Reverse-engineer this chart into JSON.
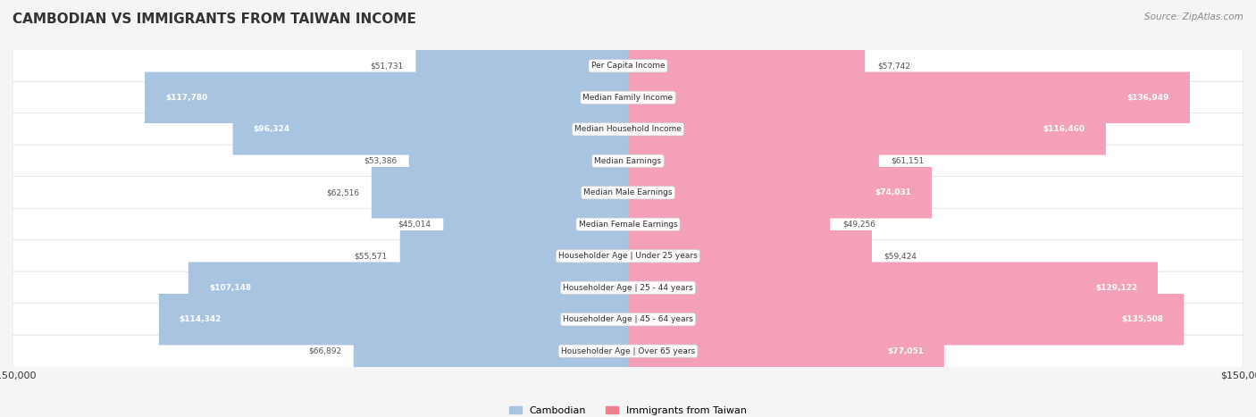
{
  "title": "CAMBODIAN VS IMMIGRANTS FROM TAIWAN INCOME",
  "source": "Source: ZipAtlas.com",
  "categories": [
    "Per Capita Income",
    "Median Family Income",
    "Median Household Income",
    "Median Earnings",
    "Median Male Earnings",
    "Median Female Earnings",
    "Householder Age | Under 25 years",
    "Householder Age | 25 - 44 years",
    "Householder Age | 45 - 64 years",
    "Householder Age | Over 65 years"
  ],
  "cambodian_values": [
    51731,
    117780,
    96324,
    53386,
    62516,
    45014,
    55571,
    107148,
    114342,
    66892
  ],
  "taiwan_values": [
    57742,
    136949,
    116460,
    61151,
    74031,
    49256,
    59424,
    129122,
    135508,
    77051
  ],
  "max_value": 150000,
  "cambodian_color": "#a8c4e0",
  "cambodian_dark_color": "#6699cc",
  "taiwan_color": "#f4a0b8",
  "taiwan_dark_color": "#e8698a",
  "bg_color": "#f5f5f5",
  "row_bg_color": "#ffffff",
  "label_bg_color": "#ffffff",
  "title_color": "#333333",
  "legend_cambodian_color": "#a8c4e0",
  "legend_taiwan_color": "#f08090"
}
